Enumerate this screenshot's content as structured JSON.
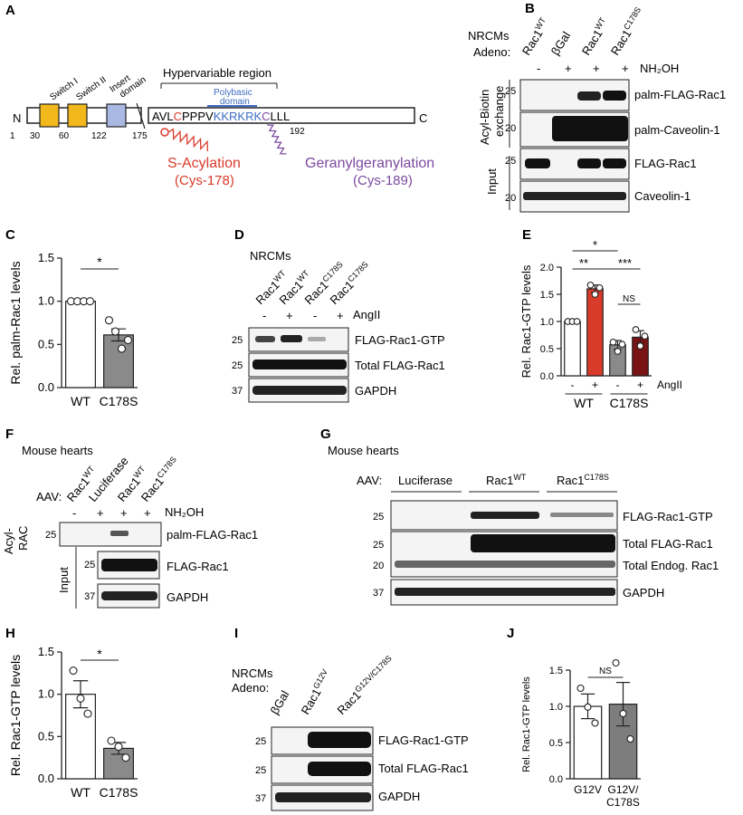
{
  "panels": {
    "A": "A",
    "B": "B",
    "C": "C",
    "D": "D",
    "E": "E",
    "F": "F",
    "G": "G",
    "H": "H",
    "I": "I",
    "J": "J"
  },
  "colors": {
    "switch": "#f2b81c",
    "insert": "#aab9e3",
    "red": "#d93b2b",
    "purple": "#7b4aa0",
    "blue": "#3d6cc3",
    "darkred": "#7a1414",
    "gray": "#8a8a8a",
    "gray2": "#7d7d7d"
  },
  "panelA": {
    "n": "N",
    "c": "C",
    "switch1": "Switch I",
    "switch2": "Switch II",
    "insert": "Insert",
    "insert2": "domain",
    "hvr": "Hypervariable region",
    "poly1": "Polybasic",
    "poly2": "domain",
    "seq_avl": "AVL",
    "seq_c178": "C",
    "seq_pppv": "PPPV",
    "seq_kkr": "KKRKRK",
    "seq_c189": "C",
    "seq_lll": "LLL",
    "pos": [
      "1",
      "30",
      "60",
      "122",
      "175",
      "192"
    ],
    "sacyl": "S-Acylation",
    "sacyl_site": "(Cys-178)",
    "ger": "Geranylgeranylation",
    "ger_site": "(Cys-189)"
  },
  "panelB": {
    "cells": "NRCMs",
    "adeno": "Adeno:",
    "lanes": [
      "Rac1",
      "βGal",
      "Rac1",
      "Rac1"
    ],
    "lane_sup": [
      "WT",
      "",
      "WT",
      "C178S"
    ],
    "nh2oh_signs": [
      "-",
      "+",
      "+",
      "+"
    ],
    "nh2oh": "NH₂OH",
    "group1": "Acyl-Biotin",
    "group2": "exchange",
    "input": "Input",
    "rows": [
      "palm-FLAG-Rac1",
      "palm-Caveolin-1",
      "FLAG-Rac1",
      "Caveolin-1"
    ],
    "mw": [
      "25",
      "20",
      "25",
      "20"
    ]
  },
  "panelC": {
    "ylabel": "Rel. palm-Rac1 levels",
    "sig": "*",
    "chart_data": {
      "type": "bar",
      "categories": [
        "WT",
        "C178S"
      ],
      "values": [
        1.0,
        0.61
      ],
      "errors": [
        0,
        0.07
      ],
      "points": [
        [
          1.0,
          1.0,
          1.0,
          1.0
        ],
        [
          0.78,
          0.65,
          0.45,
          0.55
        ]
      ],
      "ylim": [
        0,
        1.5
      ],
      "yticks": [
        "0.0",
        "0.5",
        "1.0",
        "1.5"
      ],
      "ylabel": "Rel. palm-Rac1 levels"
    }
  },
  "panelD": {
    "cells": "NRCMs",
    "lanes": [
      "Rac1",
      "Rac1",
      "Rac1",
      "Rac1"
    ],
    "lane_sup": [
      "WT",
      "WT",
      "C178S",
      "C178S"
    ],
    "signs": [
      "-",
      "+",
      "-",
      "+"
    ],
    "treat": "AngII",
    "rows": [
      "FLAG-Rac1-GTP",
      "Total FLAG-Rac1",
      "GAPDH"
    ],
    "mw": [
      "25",
      "25",
      "37"
    ]
  },
  "panelE": {
    "ylabel": "Rel. Rac1-GTP levels",
    "treat": "AngII",
    "signs": [
      "-",
      "+",
      "-",
      "+"
    ],
    "groups": [
      "WT",
      "C178S"
    ],
    "sig": [
      "*",
      "**",
      "***",
      "NS"
    ],
    "chart_data": {
      "type": "bar",
      "categories": [
        "WT -",
        "WT +",
        "C178S -",
        "C178S +"
      ],
      "values": [
        1.0,
        1.6,
        0.57,
        0.71
      ],
      "errors": [
        0,
        0.07,
        0.08,
        0.12
      ],
      "points": [
        [
          1.0,
          1.0,
          1.0
        ],
        [
          1.67,
          1.5,
          1.62
        ],
        [
          0.62,
          0.45,
          0.58
        ],
        [
          0.85,
          0.55,
          0.73
        ]
      ],
      "ylim": [
        0,
        2.0
      ],
      "yticks": [
        "0.0",
        "0.5",
        "1.0",
        "1.5",
        "2.0"
      ],
      "ylabel": "Rel. Rac1-GTP levels"
    }
  },
  "panelF": {
    "src": "Mouse hearts",
    "aav": "AAV:",
    "lanes": [
      "Rac1",
      "Luciferase",
      "Rac1",
      "Rac1"
    ],
    "lane_sup": [
      "WT",
      "",
      "WT",
      "C178S"
    ],
    "signs": [
      "-",
      "+",
      "+",
      "+"
    ],
    "nh2oh": "NH₂OH",
    "group1": "Acyl-",
    "group2": "RAC",
    "input": "Input",
    "rows": [
      "palm-FLAG-Rac1",
      "FLAG-Rac1",
      "GAPDH"
    ],
    "mw": [
      "25",
      "25",
      "37"
    ]
  },
  "panelG": {
    "src": "Mouse hearts",
    "aav": "AAV:",
    "groups": [
      "Luciferase",
      "Rac1",
      "Rac1"
    ],
    "group_sup": [
      "",
      "WT",
      "C178S"
    ],
    "rows": [
      "FLAG-Rac1-GTP",
      "Total FLAG-Rac1",
      "Total Endog. Rac1",
      "GAPDH"
    ],
    "mw": [
      "25",
      "25",
      "20",
      "37"
    ]
  },
  "panelH": {
    "ylabel": "Rel. Rac1-GTP levels",
    "sig": "*",
    "chart_data": {
      "type": "bar",
      "categories": [
        "WT",
        "C178S"
      ],
      "values": [
        1.0,
        0.36
      ],
      "errors": [
        0.16,
        0.07
      ],
      "points": [
        [
          1.28,
          0.95,
          0.77
        ],
        [
          0.45,
          0.38,
          0.25
        ]
      ],
      "ylim": [
        0,
        1.5
      ],
      "yticks": [
        "0.0",
        "0.5",
        "1.0",
        "1.5"
      ],
      "ylabel": "Rel. Rac1-GTP levels"
    }
  },
  "panelI": {
    "cells": "NRCMs",
    "adeno": "Adeno:",
    "lanes": [
      "βGal",
      "Rac1",
      "Rac1"
    ],
    "lane_sup": [
      "",
      "G12V",
      "G12V/C178S"
    ],
    "rows": [
      "FLAG-Rac1-GTP",
      "Total FLAG-Rac1",
      "GAPDH"
    ],
    "mw": [
      "25",
      "25",
      "37"
    ]
  },
  "panelJ": {
    "ylabel": "Rel. Rac1-GTP levels",
    "sig": "NS",
    "cat2b": "C178S",
    "chart_data": {
      "type": "bar",
      "categories": [
        "G12V",
        "G12V/"
      ],
      "values": [
        1.0,
        1.03
      ],
      "errors": [
        0.17,
        0.3
      ],
      "points": [
        [
          1.25,
          0.99,
          0.77
        ],
        [
          1.6,
          0.9,
          0.55
        ]
      ],
      "ylim": [
        0,
        1.5
      ],
      "yticks": [
        "0.0",
        "0.5",
        "1.0",
        "1.5"
      ],
      "ylabel": "Rel. Rac1-GTP levels"
    }
  }
}
